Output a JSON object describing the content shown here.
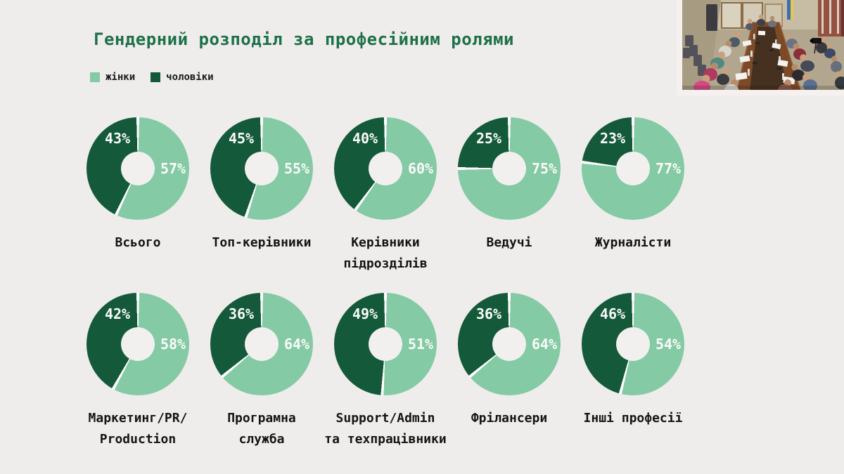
{
  "slide": {
    "title": "Гендерний розподіл за професійним ролями"
  },
  "legend": [
    {
      "label": "жінки",
      "color": "#84caa4"
    },
    {
      "label": "чоловіки",
      "color": "#14593a"
    }
  ],
  "colors": {
    "background": "#eeedec",
    "title_green": "#1e7048",
    "women_light_green": "#84caa4",
    "men_dark_green": "#14593a",
    "percent_text": "#fbfbf9",
    "category_text": "#141414"
  },
  "chart_data": {
    "type": "pie",
    "subtype": "donut-grid",
    "title": "Гендерний розподіл за професійним ролями",
    "legend_entries": [
      "жінки",
      "чоловіки"
    ],
    "legend_position": "top-left",
    "series_meaning": "percentage of women vs men per professional role",
    "colors": {
      "women": "#84caa4",
      "men": "#14593a"
    },
    "charts": [
      {
        "label": "Всього",
        "label_lines": [
          "Всього"
        ],
        "women_pct": 57,
        "men_pct": 43,
        "women_label": "57%",
        "men_label": "43%"
      },
      {
        "label": "Топ-керівники",
        "label_lines": [
          "Топ-керівники"
        ],
        "women_pct": 55,
        "men_pct": 45,
        "women_label": "55%",
        "men_label": "45%"
      },
      {
        "label": "Керівники підрозділів",
        "label_lines": [
          "Керівники",
          "підрозділів"
        ],
        "women_pct": 60,
        "men_pct": 40,
        "women_label": "60%",
        "men_label": "40%"
      },
      {
        "label": "Ведучі",
        "label_lines": [
          "Ведучі"
        ],
        "women_pct": 75,
        "men_pct": 25,
        "women_label": "75%",
        "men_label": "25%"
      },
      {
        "label": "Журналісти",
        "label_lines": [
          "Журналісти"
        ],
        "women_pct": 77,
        "men_pct": 23,
        "women_label": "77%",
        "men_label": "23%"
      },
      {
        "label": "Маркетинг/PR/ Production",
        "label_lines": [
          "Маркетинг/PR/",
          "Production"
        ],
        "women_pct": 58,
        "men_pct": 42,
        "women_label": "58%",
        "men_label": "42%"
      },
      {
        "label": "Програмна служба",
        "label_lines": [
          "Програмна",
          "служба"
        ],
        "women_pct": 64,
        "men_pct": 36,
        "women_label": "64%",
        "men_label": "36%"
      },
      {
        "label": "Support/Admin та техпрацівники",
        "label_lines": [
          "Support/Admin",
          "та техпрацівники"
        ],
        "women_pct": 51,
        "men_pct": 49,
        "women_label": "51%",
        "men_label": "49%"
      },
      {
        "label": "Фрілансери",
        "label_lines": [
          "Фрілансери"
        ],
        "women_pct": 64,
        "men_pct": 36,
        "women_label": "64%",
        "men_label": "36%"
      },
      {
        "label": "Інші професії",
        "label_lines": [
          "Інші професії"
        ],
        "women_pct": 54,
        "men_pct": 46,
        "women_label": "54%",
        "men_label": "46%"
      }
    ]
  }
}
